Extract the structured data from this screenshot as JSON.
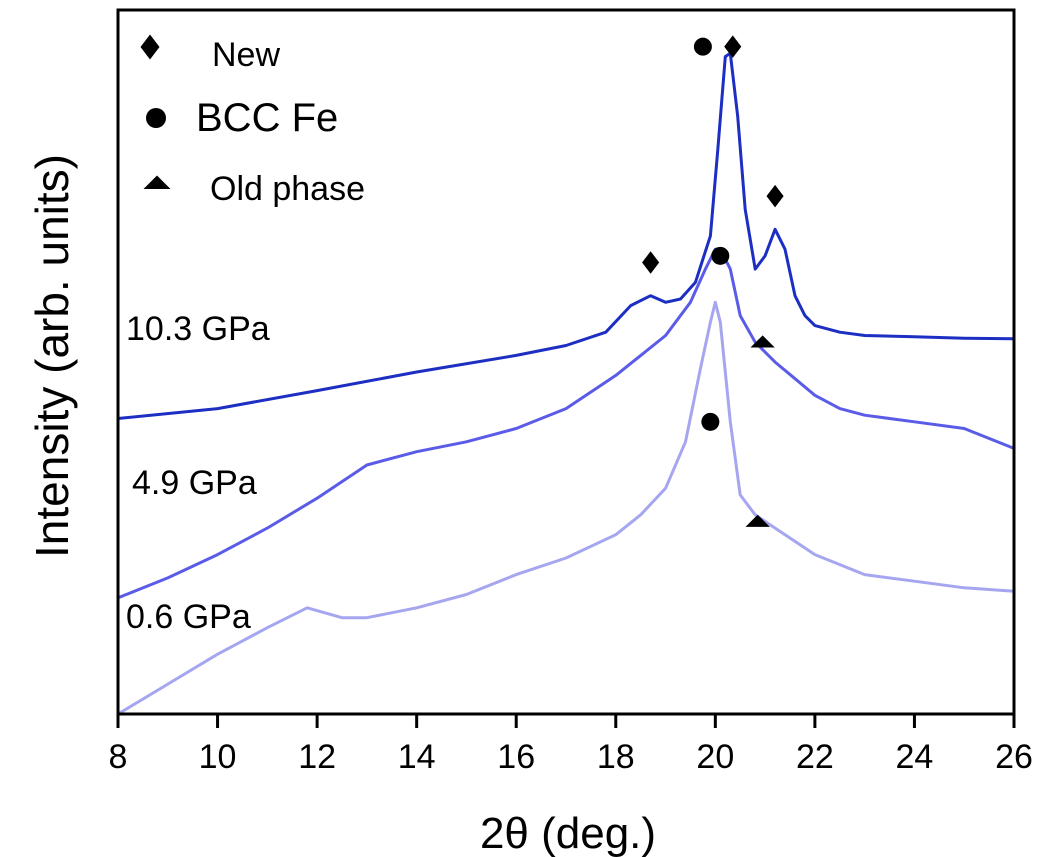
{
  "chart_data": {
    "type": "line",
    "xlabel": "2θ (deg.)",
    "ylabel": "Intensity (arb. units)",
    "xlim": [
      8,
      26
    ],
    "ylim": [
      0,
      1
    ],
    "xticks": [
      "8",
      "10",
      "12",
      "14",
      "16",
      "18",
      "20",
      "22",
      "24",
      "26"
    ],
    "grid": false,
    "legend": {
      "placement": "top-left",
      "entries": [
        {
          "marker": "diamond",
          "label": "New"
        },
        {
          "marker": "circle",
          "label": "BCC Fe"
        },
        {
          "marker": "triangle",
          "label": "Old phase"
        }
      ]
    },
    "series": [
      {
        "name": "10.3 GPa",
        "color": "#1c2fc2",
        "x": [
          8,
          10,
          12,
          14,
          16,
          17,
          17.8,
          18.3,
          18.7,
          19.0,
          19.3,
          19.6,
          19.9,
          20.05,
          20.2,
          20.3,
          20.45,
          20.6,
          20.8,
          21.0,
          21.2,
          21.4,
          21.6,
          21.8,
          22,
          22.5,
          23,
          24,
          25,
          26
        ],
        "y": [
          0.445,
          0.46,
          0.487,
          0.515,
          0.54,
          0.555,
          0.575,
          0.615,
          0.63,
          0.62,
          0.625,
          0.65,
          0.72,
          0.85,
          0.99,
          0.995,
          0.9,
          0.76,
          0.67,
          0.69,
          0.73,
          0.7,
          0.63,
          0.6,
          0.585,
          0.575,
          0.57,
          0.568,
          0.566,
          0.565
        ]
      },
      {
        "name": "4.9 GPa",
        "color": "#5a5ce8",
        "x": [
          8,
          9,
          10,
          11,
          12,
          13,
          14,
          15,
          16,
          17,
          18,
          19,
          19.5,
          19.8,
          20.0,
          20.1,
          20.3,
          20.5,
          20.8,
          21.2,
          21.6,
          22,
          22.5,
          23,
          24,
          25,
          26
        ],
        "y": [
          0.175,
          0.205,
          0.24,
          0.28,
          0.325,
          0.375,
          0.395,
          0.41,
          0.43,
          0.46,
          0.51,
          0.57,
          0.62,
          0.67,
          0.7,
          0.7,
          0.67,
          0.6,
          0.56,
          0.53,
          0.505,
          0.48,
          0.46,
          0.45,
          0.44,
          0.43,
          0.4
        ]
      },
      {
        "name": "0.6 GPa",
        "color": "#a6a6f0",
        "x": [
          8,
          9,
          10,
          11,
          11.8,
          12.5,
          13,
          14,
          15,
          16,
          17,
          18,
          18.5,
          19,
          19.4,
          19.7,
          19.9,
          20.0,
          20.1,
          20.3,
          20.5,
          20.8,
          21.2,
          22,
          23,
          24,
          25,
          26
        ],
        "y": [
          0.0,
          0.045,
          0.09,
          0.13,
          0.16,
          0.145,
          0.145,
          0.16,
          0.18,
          0.21,
          0.235,
          0.27,
          0.3,
          0.34,
          0.41,
          0.52,
          0.59,
          0.62,
          0.59,
          0.44,
          0.33,
          0.3,
          0.28,
          0.24,
          0.21,
          0.2,
          0.19,
          0.185
        ]
      }
    ],
    "series_labels": [
      "10.3 GPa",
      "4.9 GPa",
      "0.6 GPa"
    ],
    "annotations": [
      {
        "marker": "diamond",
        "x": 18.7,
        "y": 0.68
      },
      {
        "marker": "circle",
        "x": 19.75,
        "y": 1.005
      },
      {
        "marker": "diamond",
        "x": 20.35,
        "y": 1.005
      },
      {
        "marker": "diamond",
        "x": 21.2,
        "y": 0.78
      },
      {
        "marker": "circle",
        "x": 20.1,
        "y": 0.69
      },
      {
        "marker": "triangle",
        "x": 20.95,
        "y": 0.56
      },
      {
        "marker": "circle",
        "x": 19.9,
        "y": 0.44
      },
      {
        "marker": "triangle",
        "x": 20.85,
        "y": 0.29
      }
    ]
  }
}
